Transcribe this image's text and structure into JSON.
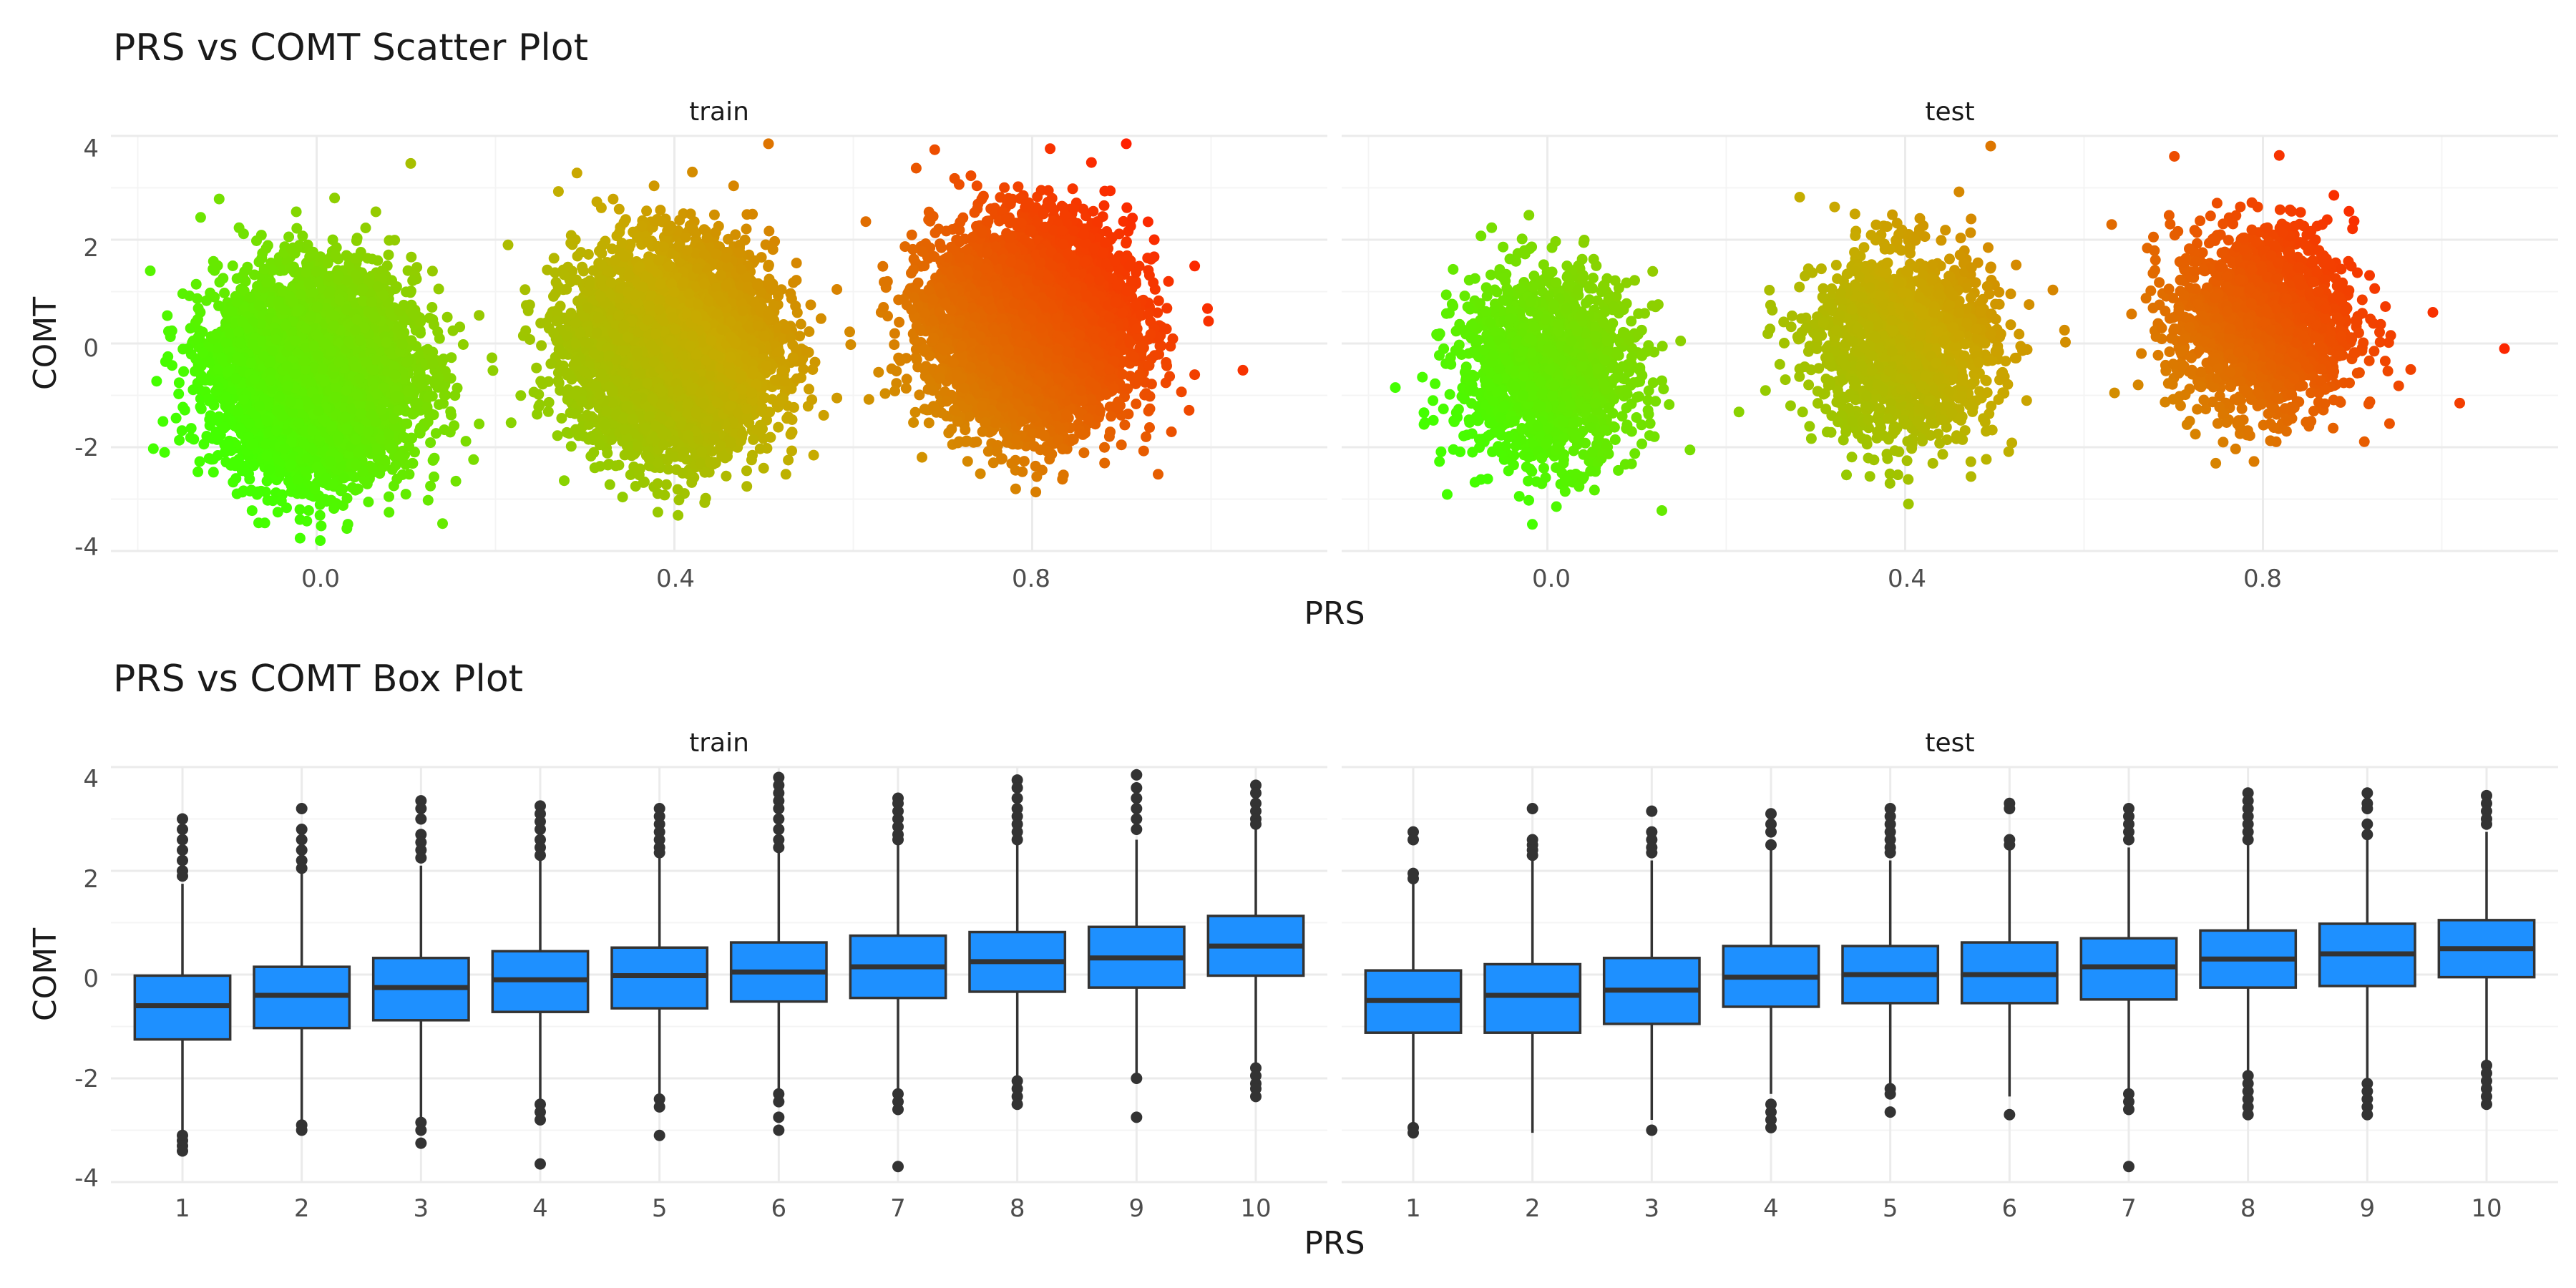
{
  "chart_data": [
    {
      "type": "scatter",
      "title": "PRS vs COMT Scatter Plot",
      "facets": [
        "train",
        "test"
      ],
      "xlabel": "PRS",
      "ylabel": "COMT",
      "xticks": [
        "0.0",
        "0.4",
        "0.8"
      ],
      "yticks": [
        "-4",
        "-2",
        "0",
        "2",
        "4"
      ],
      "xlim": [
        -0.23,
        1.13
      ],
      "ylim": [
        -4.0,
        4.0
      ],
      "color_scale": {
        "low": "#44ff00",
        "mid": "#c8aa00",
        "high": "#ff2000",
        "domain": [
          -0.2,
          1.1
        ]
      },
      "clusters": [
        {
          "facet": "train",
          "x_center": 0.0,
          "x_sd": 0.055,
          "y_center": -0.6,
          "y_sd": 0.95,
          "n": 5000
        },
        {
          "facet": "train",
          "x_center": 0.4,
          "x_sd": 0.055,
          "y_center": -0.1,
          "y_sd": 0.95,
          "n": 5000
        },
        {
          "facet": "train",
          "x_center": 0.8,
          "x_sd": 0.055,
          "y_center": 0.35,
          "y_sd": 0.95,
          "n": 5000
        },
        {
          "facet": "test",
          "x_center": 0.0,
          "x_sd": 0.05,
          "y_center": -0.5,
          "y_sd": 0.9,
          "n": 1600
        },
        {
          "facet": "test",
          "x_center": 0.4,
          "x_sd": 0.05,
          "y_center": -0.05,
          "y_sd": 0.9,
          "n": 1600
        },
        {
          "facet": "test",
          "x_center": 0.8,
          "x_sd": 0.05,
          "y_center": 0.4,
          "y_sd": 0.9,
          "n": 1600
        }
      ],
      "extreme_points": [
        {
          "facet": "test",
          "x": 1.07,
          "y": -0.1
        },
        {
          "facet": "test",
          "x": 1.02,
          "y": -1.15
        },
        {
          "facet": "test",
          "x": 0.99,
          "y": 0.6
        },
        {
          "facet": "train",
          "x": -0.17,
          "y": -2.1
        },
        {
          "facet": "test",
          "x": -0.17,
          "y": -0.85
        }
      ],
      "grid": true,
      "legend": "none"
    },
    {
      "type": "box",
      "title": "PRS vs COMT Box Plot",
      "facets": [
        "train",
        "test"
      ],
      "xlabel": "PRS",
      "ylabel": "COMT",
      "categories": [
        "1",
        "2",
        "3",
        "4",
        "5",
        "6",
        "7",
        "8",
        "9",
        "10"
      ],
      "yticks": [
        "-4",
        "-2",
        "0",
        "2",
        "4"
      ],
      "ylim": [
        -4.0,
        4.0
      ],
      "fill": "#1e90ff",
      "series": [
        {
          "name": "train",
          "boxes": [
            {
              "q1": -1.25,
              "median": -0.6,
              "q3": -0.02,
              "lower": -3.0,
              "upper": 1.75,
              "outliers": [
                3.0,
                2.8,
                2.6,
                2.4,
                2.2,
                2.0,
                1.9,
                -3.1,
                -3.2,
                -3.3,
                -3.4
              ]
            },
            {
              "q1": -1.03,
              "median": -0.4,
              "q3": 0.15,
              "lower": -2.8,
              "upper": 1.95,
              "outliers": [
                3.2,
                2.8,
                2.6,
                2.4,
                2.2,
                2.05,
                -2.9,
                -3.0
              ]
            },
            {
              "q1": -0.88,
              "median": -0.25,
              "q3": 0.32,
              "lower": -2.8,
              "upper": 2.1,
              "outliers": [
                3.35,
                3.2,
                3.0,
                2.7,
                2.55,
                2.4,
                2.25,
                -2.85,
                -3.0,
                -3.25
              ]
            },
            {
              "q1": -0.72,
              "median": -0.1,
              "q3": 0.45,
              "lower": -2.45,
              "upper": 2.2,
              "outliers": [
                3.25,
                3.1,
                2.95,
                2.8,
                2.6,
                2.45,
                2.3,
                -2.5,
                -2.65,
                -2.8,
                -3.65
              ]
            },
            {
              "q1": -0.65,
              "median": -0.02,
              "q3": 0.52,
              "lower": -2.3,
              "upper": 2.25,
              "outliers": [
                3.2,
                3.05,
                2.9,
                2.75,
                2.6,
                2.45,
                2.35,
                -2.4,
                -2.55,
                -3.1
              ]
            },
            {
              "q1": -0.52,
              "median": 0.05,
              "q3": 0.62,
              "lower": -2.2,
              "upper": 2.35,
              "outliers": [
                3.8,
                3.65,
                3.5,
                3.35,
                3.2,
                3.0,
                2.8,
                2.6,
                2.45,
                -2.3,
                -2.45,
                -2.75,
                -3.0
              ]
            },
            {
              "q1": -0.45,
              "median": 0.15,
              "q3": 0.75,
              "lower": -2.25,
              "upper": 2.5,
              "outliers": [
                3.4,
                3.3,
                3.15,
                3.0,
                2.85,
                2.7,
                2.6,
                -2.3,
                -2.45,
                -2.6,
                -3.7
              ]
            },
            {
              "q1": -0.33,
              "median": 0.25,
              "q3": 0.82,
              "lower": -2.0,
              "upper": 2.5,
              "outliers": [
                3.75,
                3.6,
                3.4,
                3.2,
                3.05,
                2.9,
                2.75,
                2.6,
                -2.05,
                -2.2,
                -2.35,
                -2.5
              ]
            },
            {
              "q1": -0.25,
              "median": 0.32,
              "q3": 0.92,
              "lower": -1.95,
              "upper": 2.6,
              "outliers": [
                3.85,
                3.6,
                3.4,
                3.2,
                3.0,
                2.8,
                -2.0,
                -2.75
              ]
            },
            {
              "q1": -0.02,
              "median": 0.55,
              "q3": 1.13,
              "lower": -1.75,
              "upper": 2.8,
              "outliers": [
                3.65,
                3.5,
                3.3,
                3.15,
                3.0,
                2.9,
                -1.8,
                -1.95,
                -2.1,
                -2.2,
                -2.35
              ]
            }
          ]
        },
        {
          "name": "test",
          "boxes": [
            {
              "q1": -1.12,
              "median": -0.5,
              "q3": 0.08,
              "lower": -2.9,
              "upper": 1.85,
              "outliers": [
                2.75,
                2.6,
                1.95,
                1.85,
                -2.95,
                -3.05
              ]
            },
            {
              "q1": -1.12,
              "median": -0.4,
              "q3": 0.2,
              "lower": -3.05,
              "upper": 2.2,
              "outliers": [
                3.2,
                2.6,
                2.5,
                2.4,
                2.3
              ]
            },
            {
              "q1": -0.95,
              "median": -0.3,
              "q3": 0.32,
              "lower": -2.8,
              "upper": 2.2,
              "outliers": [
                3.15,
                2.75,
                2.6,
                2.45,
                2.35,
                -3.0
              ]
            },
            {
              "q1": -0.62,
              "median": -0.05,
              "q3": 0.55,
              "lower": -2.3,
              "upper": 2.4,
              "outliers": [
                3.1,
                2.9,
                2.75,
                2.5,
                -2.5,
                -2.65,
                -2.8,
                -2.95
              ]
            },
            {
              "q1": -0.55,
              "median": 0.0,
              "q3": 0.55,
              "lower": -2.15,
              "upper": 2.2,
              "outliers": [
                3.2,
                3.05,
                2.9,
                2.75,
                2.6,
                2.45,
                2.35,
                -2.2,
                -2.3,
                -2.65
              ]
            },
            {
              "q1": -0.55,
              "median": 0.0,
              "q3": 0.62,
              "lower": -2.35,
              "upper": 2.45,
              "outliers": [
                3.3,
                3.2,
                2.6,
                2.5,
                -2.7
              ]
            },
            {
              "q1": -0.48,
              "median": 0.15,
              "q3": 0.7,
              "lower": -2.25,
              "upper": 2.45,
              "outliers": [
                3.2,
                3.05,
                2.9,
                2.75,
                2.6,
                -2.3,
                -2.45,
                -2.6,
                -3.7
              ]
            },
            {
              "q1": -0.25,
              "median": 0.3,
              "q3": 0.85,
              "lower": -1.85,
              "upper": 2.55,
              "outliers": [
                3.5,
                3.35,
                3.2,
                3.05,
                2.9,
                2.75,
                2.6,
                -1.95,
                -2.1,
                -2.25,
                -2.4,
                -2.55,
                -2.7
              ]
            },
            {
              "q1": -0.22,
              "median": 0.4,
              "q3": 0.98,
              "lower": -2.0,
              "upper": 2.6,
              "outliers": [
                3.5,
                3.3,
                3.2,
                2.9,
                2.7,
                -2.1,
                -2.25,
                -2.4,
                -2.55,
                -2.7
              ]
            },
            {
              "q1": -0.05,
              "median": 0.5,
              "q3": 1.05,
              "lower": -1.65,
              "upper": 2.75,
              "outliers": [
                3.45,
                3.3,
                3.15,
                3.0,
                2.9,
                -1.75,
                -1.9,
                -2.05,
                -2.2,
                -2.35,
                -2.5
              ]
            }
          ]
        }
      ],
      "grid": true,
      "legend": "none"
    }
  ]
}
